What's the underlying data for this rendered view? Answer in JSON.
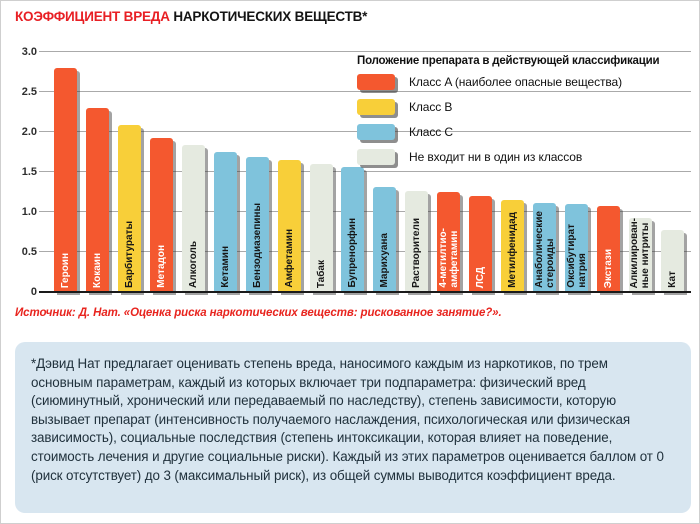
{
  "title": {
    "highlight": "КОЭФФИЦИЕНТ ВРЕДА",
    "rest": " НАРКОТИЧЕСКИХ ВЕЩЕСТВ*"
  },
  "legend": {
    "title": "Положение препарата в действующей классификации",
    "items": [
      {
        "label": "Класс A (наиболее опасные вещества)",
        "class": "A"
      },
      {
        "label": "Класс B",
        "class": "B"
      },
      {
        "label": "Класс C",
        "class": "C"
      },
      {
        "label": "Не входит ни в один из классов",
        "class": "none"
      }
    ]
  },
  "chart_data": {
    "type": "bar",
    "title": "Коэффициент вреда наркотических веществ",
    "xlabel": "",
    "ylabel": "",
    "ylim": [
      0,
      3.0
    ],
    "ytick_step": 0.5,
    "yticks": [
      "3.0",
      "2.5",
      "2.0",
      "1.5",
      "1.0",
      "0.5",
      "0"
    ],
    "grid": true,
    "legend_position": "top-right",
    "categories": [
      "Героин",
      "Кокаин",
      "Барбитураты",
      "Метадон",
      "Алкоголь",
      "Кетамин",
      "Бензодиазепины",
      "Амфетамин",
      "Табак",
      "Бупренорфин",
      "Марихуана",
      "Растворители",
      "4-метилтио-\nамфетамин",
      "ЛСД",
      "Метилфенидад",
      "Анаболические\nстероиды",
      "Оксибутират\nнатрия",
      "Экстази",
      "Алкилирован-\nные нитриты",
      "Кат"
    ],
    "values": [
      2.8,
      2.3,
      2.09,
      1.92,
      1.84,
      1.75,
      1.69,
      1.65,
      1.6,
      1.56,
      1.31,
      1.26,
      1.25,
      1.2,
      1.15,
      1.11,
      1.1,
      1.07,
      0.92,
      0.78
    ],
    "classes": [
      "A",
      "A",
      "B",
      "A",
      "none",
      "C",
      "C",
      "B",
      "none",
      "C",
      "C",
      "none",
      "A",
      "A",
      "B",
      "C",
      "C",
      "A",
      "none",
      "none"
    ]
  },
  "class_colors": {
    "A": "#f4582f",
    "B": "#f8cf39",
    "C": "#7fc3dc",
    "none": "#e5eae0"
  },
  "class_label_colors": {
    "A": "#ffffff",
    "B": "#161616",
    "C": "#161616",
    "none": "#161616"
  },
  "source": "Источник: Д. Нат. «Оценка риска наркотических веществ: рискованное занятие?».",
  "footnote": "*Дэвид Нат предлагает оценивать степень вреда, наносимого каждым из наркотиков, по трем основным параметрам, каждый из которых включает три подпараметра: физический вред (сиюминутный, хронический или передаваемый по наследству), степень зависимости, которую вызывает препарат (интенсивность получаемого наслаждения, психологическая или физическая зависимость), социальные последствия (степень интоксикации, которая влияет на поведение, стоимость лечения и другие социальные риски). Каждый из этих параметров оценивается баллом от 0 (риск отсутствует) до 3 (максимальный риск), из общей суммы выводится коэффициент вреда."
}
